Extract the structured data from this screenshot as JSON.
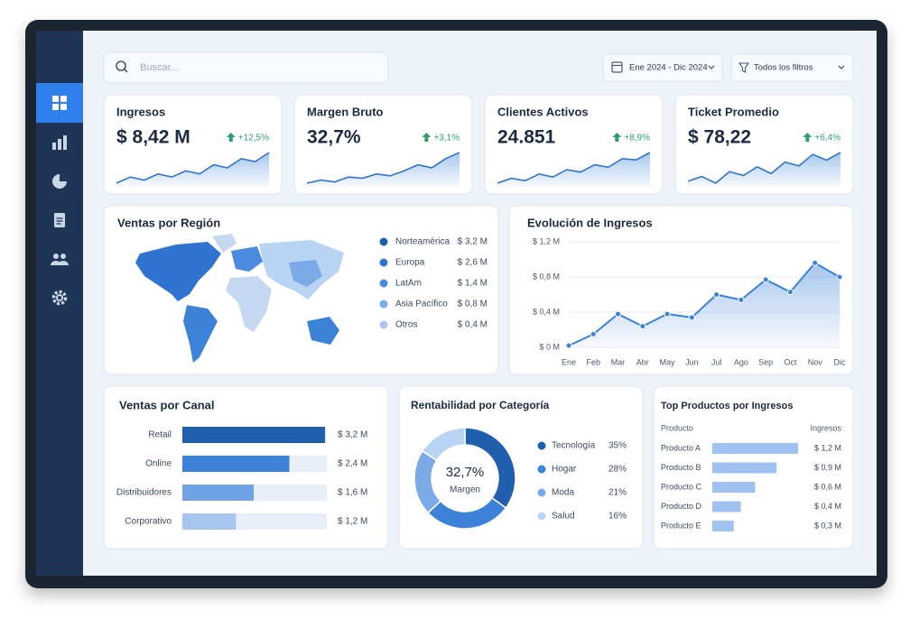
{
  "search": {
    "placeholder": "Buscar..."
  },
  "filters": {
    "date": "Ene 2024 - Dic 2024",
    "all": "Todos los filtros"
  },
  "kpis": [
    {
      "title": "Ingresos",
      "value": "$ 8,42 M",
      "change": "+12,5%",
      "trend": [
        2,
        3,
        2.5,
        3.5,
        3,
        4,
        3.5,
        5,
        4.5,
        6,
        5.5,
        7
      ]
    },
    {
      "title": "Margen Bruto",
      "value": "32,7%",
      "change": "+3,1%",
      "trend": [
        2,
        2.5,
        2.2,
        3,
        2.8,
        3.5,
        3.2,
        4,
        5,
        4.5,
        6,
        7
      ]
    },
    {
      "title": "Clientes Activos",
      "value": "24.851",
      "change": "+8,9%",
      "trend": [
        2,
        2.8,
        2.4,
        3.5,
        3,
        4.2,
        3.8,
        5,
        4.6,
        6,
        5.8,
        7
      ]
    },
    {
      "title": "Ticket Promedio",
      "value": "$ 78,22",
      "change": "+6,4%",
      "trend": [
        3,
        3.5,
        2.8,
        4,
        3.6,
        4.5,
        3.8,
        5,
        4.6,
        5.8,
        5.2,
        6
      ]
    }
  ],
  "regions": {
    "title": "Ventas por Región",
    "items": [
      {
        "name": "Norteamérica",
        "value": "$ 3,2 M",
        "color": "#1f5fae"
      },
      {
        "name": "Europa",
        "value": "$ 2,6 M",
        "color": "#2f74d0"
      },
      {
        "name": "LatAm",
        "value": "$ 1,4 M",
        "color": "#4a8be0"
      },
      {
        "name": "Asia Pacífico",
        "value": "$ 0,8 M",
        "color": "#7aaae8"
      },
      {
        "name": "Otros",
        "value": "$ 0,4 M",
        "color": "#a9c7f0"
      }
    ]
  },
  "revenue": {
    "type": "line",
    "title": "Evolución de Ingresos",
    "categories": [
      "Ene",
      "Feb",
      "Mar",
      "Abr",
      "May",
      "Jun",
      "Jul",
      "Ago",
      "Sep",
      "Oct",
      "Nov",
      "Dic"
    ],
    "values": [
      0.02,
      0.15,
      0.38,
      0.24,
      0.38,
      0.34,
      0.6,
      0.54,
      0.77,
      0.63,
      0.96,
      0.8
    ],
    "ylim": [
      0,
      1.2
    ],
    "yticks": [
      {
        "value": 0,
        "label": "$ 0 M"
      },
      {
        "value": 0.4,
        "label": "$ 0,4 M"
      },
      {
        "value": 0.8,
        "label": "$ 0,8 M"
      },
      {
        "value": 1.2,
        "label": "$ 1,2 M"
      }
    ],
    "color": "#3b82d8",
    "grid": true
  },
  "channels": {
    "type": "bar",
    "title": "Ventas por Canal",
    "categories": [
      "Retail",
      "Online",
      "Distribuidores",
      "Corporativo"
    ],
    "values": [
      3.2,
      2.4,
      1.6,
      1.2
    ],
    "value_labels": [
      "$ 3,2 M",
      "$ 2,4 M",
      "$ 1,6 M",
      "$ 1,2 M"
    ],
    "colors": [
      "#1f5fae",
      "#3b82d8",
      "#6fa3e6",
      "#a6c6f0"
    ]
  },
  "profitability": {
    "type": "pie",
    "title": "Rentabilidad por Categoría",
    "center_value": "32,7%",
    "center_label": "Margen",
    "categories": [
      "Tecnología",
      "Hogar",
      "Moda",
      "Salud"
    ],
    "values": [
      35,
      28,
      21,
      16
    ],
    "value_labels": [
      "35%",
      "28%",
      "21%",
      "16%"
    ],
    "colors": [
      "#1f5fae",
      "#3b82d8",
      "#7aaae8",
      "#b9d3f3"
    ]
  },
  "products": {
    "type": "bar",
    "title": "Top Productos por Ingresos",
    "headers": [
      "Producto",
      "Ingresos"
    ],
    "categories": [
      "Producto A",
      "Producto B",
      "Producto C",
      "Producto D",
      "Producto E"
    ],
    "values": [
      1.2,
      0.9,
      0.6,
      0.4,
      0.3
    ],
    "value_labels": [
      "$ 1,2 M",
      "$ 0,9 M",
      "$ 0,6 M",
      "$ 0,4 M",
      "$ 0,3 M"
    ],
    "color": "#9fc2f0"
  }
}
